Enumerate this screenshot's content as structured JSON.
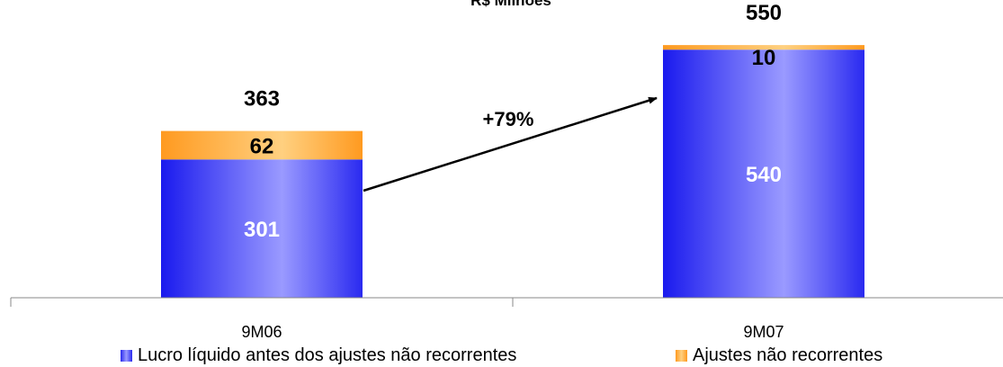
{
  "chart_data": {
    "type": "bar",
    "stacked": true,
    "title": "R$ Milhões",
    "categories": [
      "9M06",
      "9M07"
    ],
    "series": [
      {
        "name": "Lucro líquido antes dos ajustes não recorrentes",
        "values": [
          301,
          540
        ],
        "color": "#3333ff"
      },
      {
        "name": "Ajustes não recorrentes",
        "values": [
          62,
          10
        ],
        "color": "#ffa040"
      }
    ],
    "totals": [
      363,
      550
    ],
    "annotation": "+79%",
    "ylim": [
      0,
      560
    ],
    "grid": false,
    "legend_position": "bottom"
  }
}
